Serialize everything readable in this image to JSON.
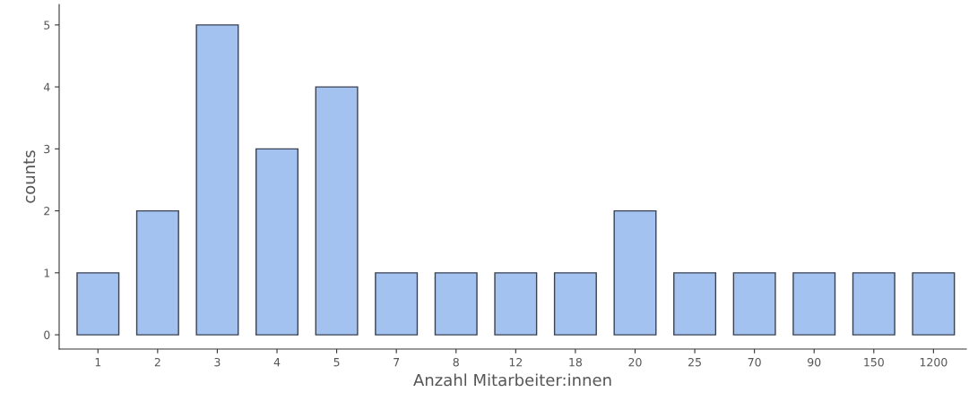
{
  "chart_data": {
    "type": "bar",
    "xlabel": "Anzahl Mitarbeiter:innen",
    "ylabel": "counts",
    "categories": [
      "1",
      "2",
      "3",
      "4",
      "5",
      "7",
      "8",
      "12",
      "18",
      "20",
      "25",
      "70",
      "90",
      "150",
      "1200"
    ],
    "values": [
      1,
      2,
      5,
      3,
      4,
      1,
      1,
      1,
      1,
      2,
      1,
      1,
      1,
      1,
      1
    ],
    "color": "#a4c2f0",
    "ylim": [
      -0.23,
      5.33
    ],
    "yticks": [
      0,
      1,
      2,
      3,
      4,
      5
    ],
    "grid": false
  }
}
